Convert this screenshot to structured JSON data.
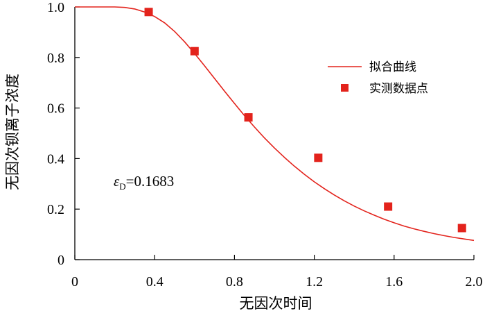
{
  "chart_data": {
    "type": "line",
    "title": "",
    "xlabel": "无因次时间",
    "ylabel": "无因次钡离子浓度",
    "xlim": [
      0,
      2.0
    ],
    "ylim": [
      0,
      1.0
    ],
    "x_ticks": [
      "0",
      "0.4",
      "0.8",
      "1.2",
      "1.6",
      "2.0"
    ],
    "y_ticks": [
      "0",
      "0.2",
      "0.4",
      "0.6",
      "0.8",
      "1.0"
    ],
    "grid": false,
    "legend_position": "top-right",
    "series": [
      {
        "name": "拟合曲线",
        "kind": "line",
        "color": "#e3231c",
        "x": [
          0,
          0.2,
          0.25,
          0.3,
          0.35,
          0.4,
          0.45,
          0.5,
          0.55,
          0.6,
          0.65,
          0.7,
          0.75,
          0.8,
          0.85,
          0.9,
          0.95,
          1.0,
          1.05,
          1.1,
          1.15,
          1.2,
          1.25,
          1.3,
          1.35,
          1.4,
          1.45,
          1.5,
          1.55,
          1.6,
          1.65,
          1.7,
          1.75,
          1.8,
          1.85,
          1.9,
          1.95,
          2.0
        ],
        "y": [
          1.0,
          1.0,
          0.998,
          0.992,
          0.98,
          0.962,
          0.937,
          0.903,
          0.862,
          0.816,
          0.767,
          0.717,
          0.667,
          0.618,
          0.57,
          0.525,
          0.482,
          0.442,
          0.405,
          0.37,
          0.338,
          0.308,
          0.281,
          0.256,
          0.233,
          0.212,
          0.193,
          0.176,
          0.16,
          0.146,
          0.133,
          0.122,
          0.112,
          0.103,
          0.095,
          0.088,
          0.082,
          0.076
        ]
      },
      {
        "name": "实测数据点",
        "kind": "scatter",
        "color": "#e3231c",
        "x": [
          0.37,
          0.6,
          0.87,
          1.22,
          1.57,
          1.94
        ],
        "y": [
          0.98,
          0.825,
          0.563,
          0.403,
          0.21,
          0.125
        ]
      }
    ],
    "annotation": {
      "symbol": "ε",
      "subscript": "D",
      "text": "=0.1683"
    }
  }
}
